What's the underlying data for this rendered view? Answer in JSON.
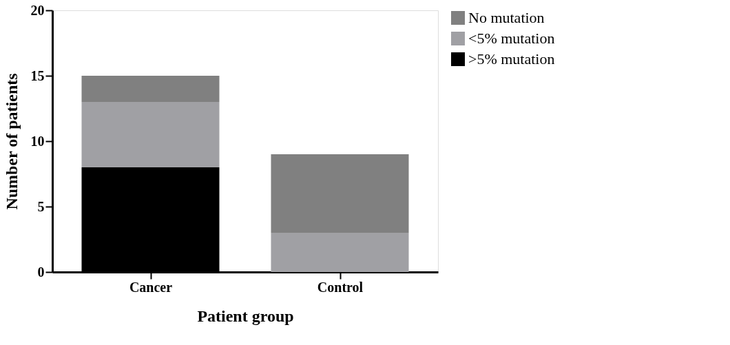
{
  "chart_data": {
    "type": "bar",
    "stacked": true,
    "xlabel": "Patient group",
    "ylabel": "Number of patients",
    "categories": [
      "Cancer",
      "Control"
    ],
    "series": [
      {
        "name": ">5% mutation",
        "color": "#000000",
        "values": [
          8,
          0
        ]
      },
      {
        "name": "<5% mutation",
        "color": "#a0a0a4",
        "values": [
          5,
          3
        ]
      },
      {
        "name": "No mutation",
        "color": "#808080",
        "values": [
          2,
          6
        ]
      }
    ],
    "ylim": [
      0,
      20
    ],
    "yticks": [
      0,
      5,
      10,
      15,
      20
    ],
    "grid": false,
    "legend": "top right"
  }
}
